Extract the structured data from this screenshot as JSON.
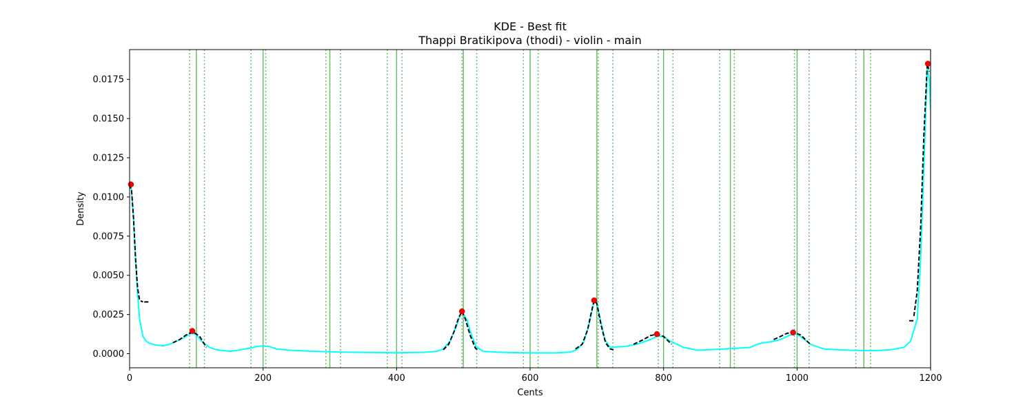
{
  "chart_data": {
    "type": "line",
    "title": "KDE - Best fit",
    "subtitle": "Thappi Bratikipova (thodi) - violin - main",
    "xlabel": "Cents",
    "ylabel": "Density",
    "xlim": [
      0,
      1200
    ],
    "ylim": [
      -0.0009,
      0.0194
    ],
    "x_ticks": [
      0,
      200,
      400,
      600,
      800,
      1000,
      1200
    ],
    "y_ticks": [
      0.0,
      0.0025,
      0.005,
      0.0075,
      0.01,
      0.0125,
      0.015,
      0.0175
    ],
    "y_tick_labels": [
      "0.0000",
      "0.0025",
      "0.0050",
      "0.0075",
      "0.0100",
      "0.0125",
      "0.0150",
      "0.0175"
    ],
    "grid": false,
    "colors": {
      "kde": "#00ffff",
      "fit": "#000000",
      "peaks": "#ff0000",
      "reference": "#2ca02c"
    },
    "reference_lines": {
      "solid": [
        100,
        200,
        300,
        400,
        500,
        600,
        700,
        800,
        900,
        1000,
        1100,
        1200
      ],
      "dotted": [
        90,
        112,
        182,
        204,
        294,
        316,
        386,
        408,
        498,
        520,
        590,
        612,
        702,
        724,
        792,
        814,
        884,
        906,
        996,
        1018,
        1088,
        1110
      ]
    },
    "kde": {
      "x": [
        0,
        3,
        6,
        9,
        12,
        15,
        20,
        25,
        30,
        40,
        50,
        60,
        70,
        80,
        90,
        95,
        100,
        110,
        120,
        130,
        150,
        160,
        170,
        180,
        190,
        200,
        210,
        220,
        240,
        260,
        280,
        300,
        320,
        340,
        360,
        380,
        400,
        420,
        440,
        460,
        470,
        480,
        490,
        497,
        505,
        512,
        520,
        530,
        550,
        570,
        600,
        620,
        640,
        660,
        670,
        680,
        688,
        695,
        700,
        705,
        712,
        720,
        740,
        760,
        780,
        790,
        800,
        810,
        830,
        850,
        870,
        890,
        910,
        930,
        940,
        950,
        960,
        975,
        990,
        995,
        1005,
        1020,
        1040,
        1060,
        1080,
        1100,
        1120,
        1140,
        1160,
        1170,
        1180,
        1185,
        1190,
        1195,
        1198,
        1200
      ],
      "y": [
        0.0108,
        0.0104,
        0.0085,
        0.006,
        0.0038,
        0.0022,
        0.0011,
        0.0008,
        0.00065,
        0.00055,
        0.0005,
        0.0006,
        0.0008,
        0.001,
        0.00125,
        0.0013,
        0.0012,
        0.0007,
        0.0004,
        0.00025,
        0.00015,
        0.0002,
        0.00028,
        0.00035,
        0.00045,
        0.0005,
        0.00045,
        0.0003,
        0.00022,
        0.00018,
        0.00014,
        0.00012,
        0.0001,
        9e-05,
        8e-05,
        7e-05,
        6e-05,
        7e-05,
        9e-05,
        0.00015,
        0.0003,
        0.0008,
        0.0018,
        0.0027,
        0.0022,
        0.0012,
        0.0004,
        0.00015,
        0.0001,
        7e-05,
        5e-05,
        5e-05,
        6e-05,
        0.0001,
        0.00025,
        0.0007,
        0.0018,
        0.0032,
        0.0033,
        0.0022,
        0.0009,
        0.0004,
        0.00045,
        0.0006,
        0.0009,
        0.0011,
        0.0011,
        0.0008,
        0.0004,
        0.00022,
        0.00025,
        0.0003,
        0.00035,
        0.0004,
        0.0006,
        0.0007,
        0.00075,
        0.0009,
        0.0012,
        0.0013,
        0.0011,
        0.0006,
        0.0003,
        0.00025,
        0.00022,
        0.0002,
        0.0002,
        0.00025,
        0.0004,
        0.0008,
        0.0022,
        0.006,
        0.012,
        0.0183,
        0.0175,
        0.0155
      ]
    },
    "fit_segments": [
      {
        "x": [
          0,
          3,
          6,
          9,
          12,
          15,
          20
        ],
        "y": [
          0.0108,
          0.0104,
          0.0086,
          0.006,
          0.0042,
          0.0034,
          0.0033
        ]
      },
      {
        "x": [
          22,
          30
        ],
        "y": [
          0.0033,
          0.0033
        ]
      },
      {
        "x": [
          65,
          75,
          85,
          95,
          105,
          115
        ],
        "y": [
          0.0007,
          0.0009,
          0.0012,
          0.0014,
          0.0011,
          0.0004
        ]
      },
      {
        "x": [
          470,
          478,
          486,
          493,
          498,
          503,
          510,
          518,
          523
        ],
        "y": [
          0.00025,
          0.0006,
          0.0014,
          0.0023,
          0.0027,
          0.0022,
          0.0012,
          0.00035,
          0.0002
        ]
      },
      {
        "x": [
          668,
          678,
          686,
          692,
          696,
          700,
          706,
          713,
          720,
          725
        ],
        "y": [
          0.0003,
          0.0006,
          0.0015,
          0.0027,
          0.0034,
          0.0032,
          0.0019,
          0.0007,
          0.0003,
          0.00025
        ]
      },
      {
        "x": [
          755,
          770,
          780,
          790,
          800,
          812
        ],
        "y": [
          0.0006,
          0.0009,
          0.00115,
          0.00125,
          0.0011,
          0.0006
        ]
      },
      {
        "x": [
          965,
          975,
          985,
          995,
          1005,
          1020
        ],
        "y": [
          0.0009,
          0.0011,
          0.0013,
          0.00135,
          0.0012,
          0.0006
        ]
      },
      {
        "x": [
          1168,
          1176
        ],
        "y": [
          0.0021,
          0.0021
        ]
      },
      {
        "x": [
          1175,
          1180,
          1185,
          1190,
          1195,
          1198
        ],
        "y": [
          0.0024,
          0.004,
          0.008,
          0.014,
          0.0185,
          0.018
        ]
      }
    ],
    "peaks": {
      "x": [
        2,
        94,
        498,
        696,
        790,
        994,
        1196
      ],
      "y": [
        0.0108,
        0.00145,
        0.0027,
        0.0034,
        0.00125,
        0.00135,
        0.0185
      ]
    }
  }
}
